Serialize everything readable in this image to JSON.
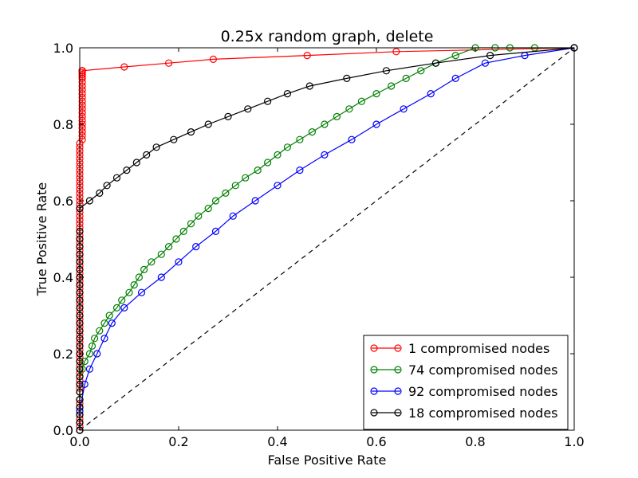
{
  "chart_data": {
    "type": "line",
    "title": "0.25x random graph, delete",
    "xlabel": "False Positive Rate",
    "ylabel": "True Positive Rate",
    "xlim": [
      0,
      1
    ],
    "ylim": [
      0,
      1
    ],
    "xticks": [
      "0.0",
      "0.2",
      "0.4",
      "0.6",
      "0.8",
      "1.0"
    ],
    "yticks": [
      "0.0",
      "0.2",
      "0.4",
      "0.6",
      "0.8",
      "1.0"
    ],
    "grid": false,
    "legend_position": "lower-right",
    "diagonal": {
      "style": "dashed",
      "color": "#000000"
    },
    "series": [
      {
        "name": "1 compromised nodes",
        "color": "#ff0000",
        "x": [
          0,
          0,
          0,
          0,
          0,
          0,
          0,
          0,
          0,
          0,
          0,
          0,
          0,
          0,
          0,
          0,
          0,
          0,
          0,
          0,
          0,
          0,
          0,
          0,
          0,
          0,
          0,
          0,
          0,
          0,
          0,
          0,
          0,
          0,
          0,
          0,
          0,
          0,
          0,
          0,
          0,
          0,
          0,
          0,
          0,
          0,
          0,
          0,
          0,
          0,
          0,
          0,
          0,
          0,
          0,
          0,
          0,
          0,
          0,
          0,
          0,
          0,
          0,
          0,
          0,
          0,
          0,
          0,
          0,
          0,
          0,
          0,
          0,
          0,
          0.005,
          0.005,
          0.005,
          0.005,
          0.005,
          0.005,
          0.005,
          0.005,
          0.005,
          0.005,
          0.005,
          0.005,
          0.005,
          0.005,
          0.005,
          0.005,
          0.005,
          0.005,
          0.005,
          0.005,
          0.005,
          0.005,
          0.005,
          0.005,
          0.005,
          0.005,
          0.005,
          0.005,
          0.005,
          0.09,
          0.18,
          0.27,
          0.46,
          0.64,
          1.0
        ],
        "y": [
          0,
          0.01,
          0.02,
          0.03,
          0.04,
          0.05,
          0.06,
          0.07,
          0.08,
          0.1,
          0.11,
          0.12,
          0.13,
          0.15,
          0.16,
          0.17,
          0.18,
          0.19,
          0.2,
          0.21,
          0.22,
          0.23,
          0.24,
          0.25,
          0.26,
          0.27,
          0.28,
          0.29,
          0.3,
          0.31,
          0.32,
          0.33,
          0.34,
          0.35,
          0.36,
          0.37,
          0.38,
          0.39,
          0.4,
          0.41,
          0.42,
          0.43,
          0.44,
          0.45,
          0.46,
          0.47,
          0.48,
          0.49,
          0.5,
          0.51,
          0.52,
          0.53,
          0.54,
          0.55,
          0.56,
          0.57,
          0.58,
          0.59,
          0.6,
          0.61,
          0.62,
          0.63,
          0.64,
          0.65,
          0.66,
          0.67,
          0.68,
          0.69,
          0.7,
          0.71,
          0.72,
          0.73,
          0.74,
          0.75,
          0.76,
          0.77,
          0.78,
          0.79,
          0.8,
          0.81,
          0.82,
          0.83,
          0.84,
          0.85,
          0.86,
          0.87,
          0.88,
          0.89,
          0.9,
          0.91,
          0.92,
          0.925,
          0.93,
          0.935,
          0.94,
          0.94,
          0.94,
          0.94,
          0.94,
          0.94,
          0.94,
          0.94,
          0.94,
          0.95,
          0.96,
          0.97,
          0.98,
          0.99,
          1.0
        ]
      },
      {
        "name": "74 compromised nodes",
        "color": "#008000",
        "x": [
          0,
          0,
          0,
          0,
          0,
          0,
          0,
          0,
          0.005,
          0.01,
          0.02,
          0.025,
          0.03,
          0.04,
          0.05,
          0.06,
          0.075,
          0.085,
          0.1,
          0.11,
          0.12,
          0.13,
          0.145,
          0.165,
          0.18,
          0.195,
          0.21,
          0.225,
          0.24,
          0.26,
          0.275,
          0.295,
          0.315,
          0.335,
          0.36,
          0.38,
          0.4,
          0.42,
          0.445,
          0.47,
          0.495,
          0.52,
          0.545,
          0.57,
          0.6,
          0.63,
          0.66,
          0.69,
          0.72,
          0.76,
          0.8,
          0.84,
          0.87,
          0.92,
          1.0
        ],
        "y": [
          0,
          0.02,
          0.04,
          0.06,
          0.08,
          0.1,
          0.12,
          0.14,
          0.16,
          0.18,
          0.2,
          0.22,
          0.24,
          0.26,
          0.28,
          0.3,
          0.32,
          0.34,
          0.36,
          0.38,
          0.4,
          0.42,
          0.44,
          0.46,
          0.48,
          0.5,
          0.52,
          0.54,
          0.56,
          0.58,
          0.6,
          0.62,
          0.64,
          0.66,
          0.68,
          0.7,
          0.72,
          0.74,
          0.76,
          0.78,
          0.8,
          0.82,
          0.84,
          0.86,
          0.88,
          0.9,
          0.92,
          0.94,
          0.96,
          0.98,
          1.0,
          1.0,
          1.0,
          1.0,
          1.0
        ]
      },
      {
        "name": "92 compromised nodes",
        "color": "#0000ff",
        "x": [
          0,
          0,
          0.01,
          0.02,
          0.035,
          0.05,
          0.065,
          0.09,
          0.125,
          0.165,
          0.2,
          0.235,
          0.275,
          0.31,
          0.355,
          0.4,
          0.445,
          0.495,
          0.55,
          0.6,
          0.655,
          0.71,
          0.76,
          0.82,
          0.9,
          1.0
        ],
        "y": [
          0,
          0.05,
          0.12,
          0.16,
          0.2,
          0.24,
          0.28,
          0.32,
          0.36,
          0.4,
          0.44,
          0.48,
          0.52,
          0.56,
          0.6,
          0.64,
          0.68,
          0.72,
          0.76,
          0.8,
          0.84,
          0.88,
          0.92,
          0.96,
          0.98,
          1.0
        ]
      },
      {
        "name": "18 compromised nodes",
        "color": "#000000",
        "x": [
          0,
          0,
          0,
          0,
          0,
          0,
          0,
          0,
          0,
          0,
          0,
          0,
          0,
          0,
          0,
          0,
          0,
          0,
          0,
          0,
          0,
          0,
          0,
          0,
          0,
          0,
          0,
          0,
          0.02,
          0.04,
          0.055,
          0.075,
          0.095,
          0.115,
          0.135,
          0.155,
          0.19,
          0.225,
          0.26,
          0.3,
          0.34,
          0.38,
          0.42,
          0.465,
          0.54,
          0.62,
          0.72,
          0.83,
          1.0
        ],
        "y": [
          0,
          0.02,
          0.04,
          0.06,
          0.08,
          0.1,
          0.12,
          0.14,
          0.16,
          0.18,
          0.2,
          0.22,
          0.24,
          0.26,
          0.28,
          0.3,
          0.32,
          0.34,
          0.36,
          0.38,
          0.4,
          0.42,
          0.44,
          0.46,
          0.48,
          0.5,
          0.52,
          0.58,
          0.6,
          0.62,
          0.64,
          0.66,
          0.68,
          0.7,
          0.72,
          0.74,
          0.76,
          0.78,
          0.8,
          0.82,
          0.84,
          0.86,
          0.88,
          0.9,
          0.92,
          0.94,
          0.96,
          0.98,
          1.0
        ]
      }
    ]
  }
}
